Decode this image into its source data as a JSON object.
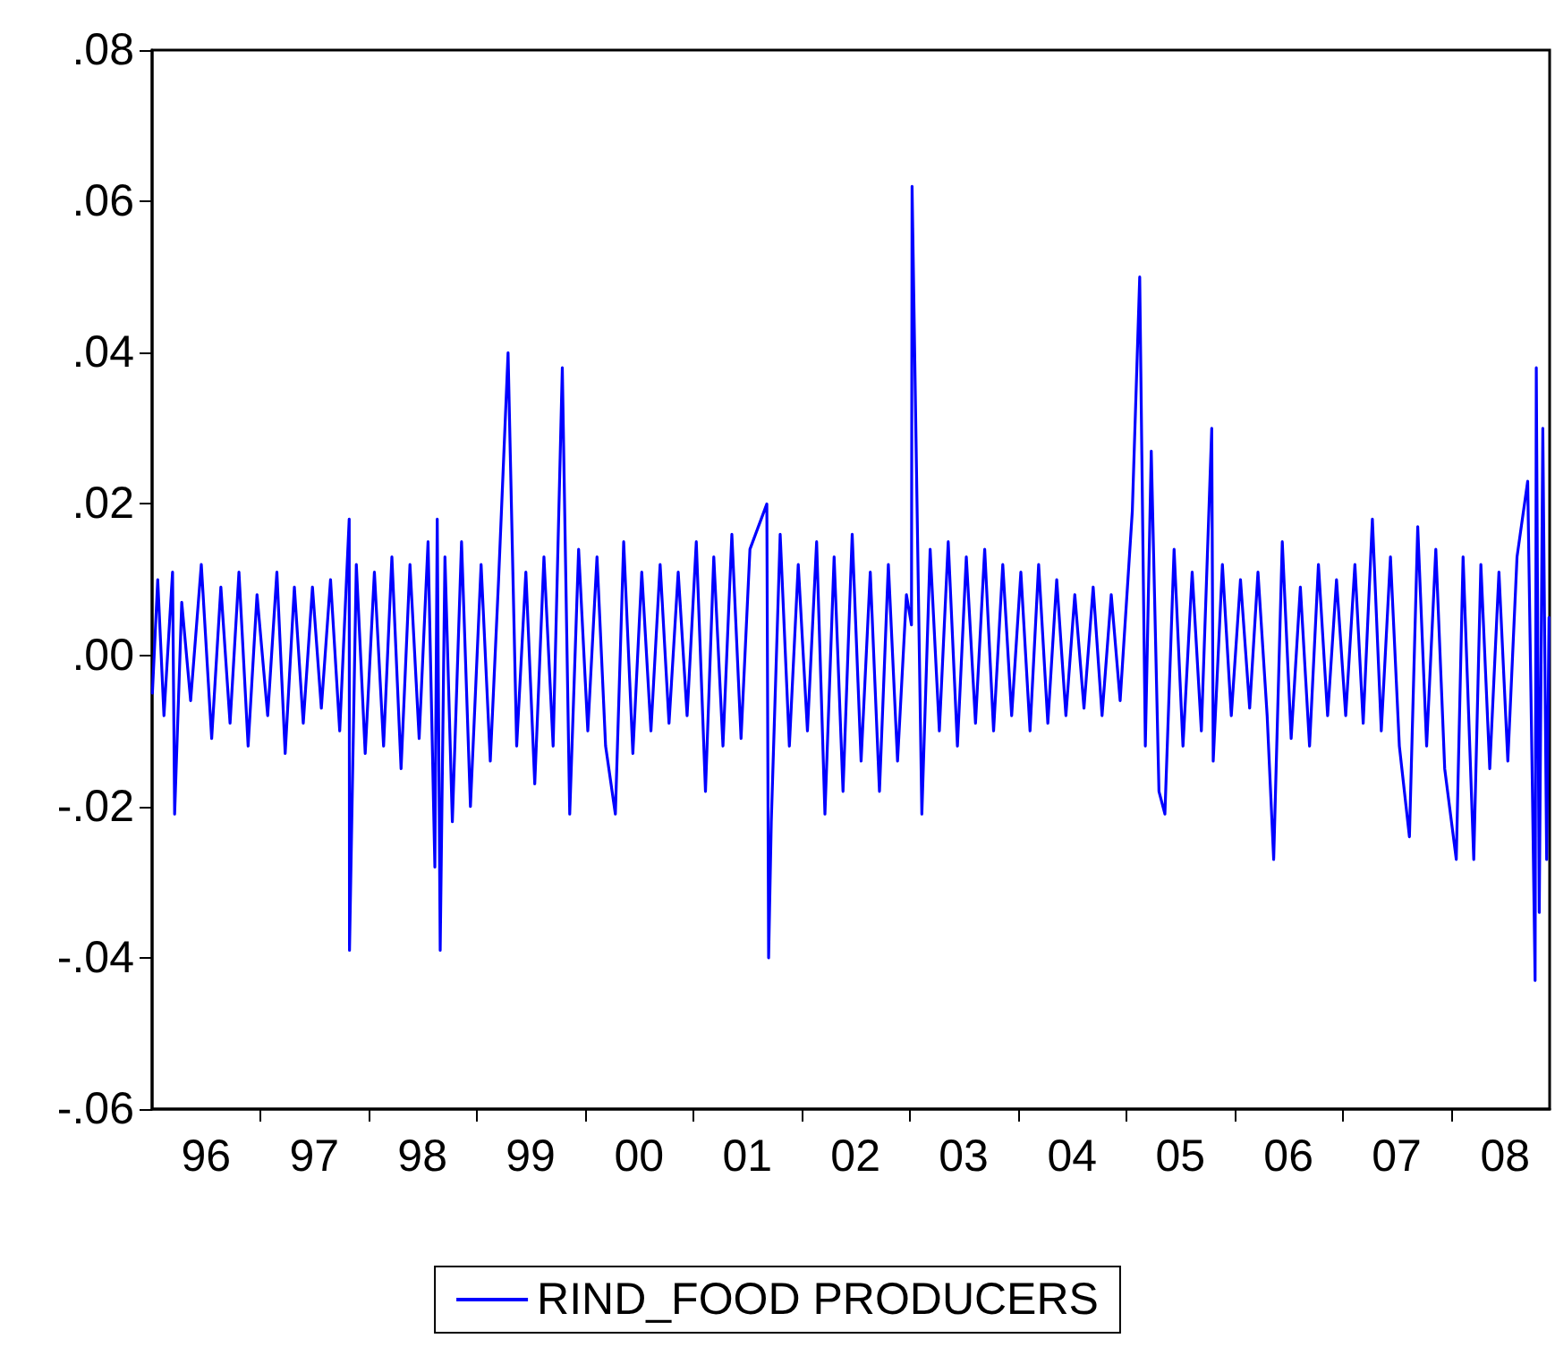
{
  "chart_data": {
    "type": "line",
    "legend": "bottom",
    "grid": false,
    "marker": "none",
    "line_style": "solid",
    "xlim": [
      "1996-01-01",
      "2008-11-28"
    ],
    "ylim": [
      -0.06,
      0.08
    ],
    "yticks": [
      {
        "value": -0.06,
        "label": "-.06"
      },
      {
        "value": -0.04,
        "label": "-.04"
      },
      {
        "value": -0.02,
        "label": "-.02"
      },
      {
        "value": 0,
        "label": ".00"
      },
      {
        "value": 0.02,
        "label": ".02"
      },
      {
        "value": 0.04,
        "label": ".04"
      },
      {
        "value": 0.06,
        "label": ".06"
      },
      {
        "value": 0.08,
        "label": ".08"
      }
    ],
    "xticks": [
      {
        "value": "1996-07-01",
        "label": "96"
      },
      {
        "value": "1997-01-01",
        "label": null
      },
      {
        "value": "1997-07-01",
        "label": "97"
      },
      {
        "value": "1998-01-01",
        "label": null
      },
      {
        "value": "1998-07-01",
        "label": "98"
      },
      {
        "value": "1999-01-01",
        "label": null
      },
      {
        "value": "1999-07-01",
        "label": "99"
      },
      {
        "value": "2000-01-01",
        "label": null
      },
      {
        "value": "2000-07-01",
        "label": "00"
      },
      {
        "value": "2001-01-01",
        "label": null
      },
      {
        "value": "2001-07-01",
        "label": "01"
      },
      {
        "value": "2002-01-01",
        "label": null
      },
      {
        "value": "2002-07-01",
        "label": "02"
      },
      {
        "value": "2003-01-01",
        "label": null
      },
      {
        "value": "2003-07-01",
        "label": "03"
      },
      {
        "value": "2004-01-01",
        "label": null
      },
      {
        "value": "2004-07-01",
        "label": "04"
      },
      {
        "value": "2005-01-01",
        "label": null
      },
      {
        "value": "2005-07-01",
        "label": "05"
      },
      {
        "value": "2006-01-01",
        "label": null
      },
      {
        "value": "2006-07-01",
        "label": "06"
      },
      {
        "value": "2007-01-01",
        "label": null
      },
      {
        "value": "2007-07-01",
        "label": "07"
      },
      {
        "value": "2008-01-01",
        "label": null
      },
      {
        "value": "2008-07-01",
        "label": "08"
      }
    ],
    "series": [
      {
        "name": "RIND_FOOD PRODUCERS",
        "color": "#0000ff",
        "x": [
          "1996-01-02",
          "1996-01-20",
          "1996-02-10",
          "1996-03-10",
          "1996-03-17",
          "1996-04-10",
          "1996-05-10",
          "1996-06-15",
          "1996-07-20",
          "1996-08-20",
          "1996-09-20",
          "1996-10-20",
          "1996-11-20",
          "1996-12-20",
          "1997-01-25",
          "1997-02-25",
          "1997-03-25",
          "1997-04-25",
          "1997-05-25",
          "1997-06-25",
          "1997-07-25",
          "1997-08-25",
          "1997-09-25",
          "1997-10-27",
          "1997-10-28",
          "1997-11-20",
          "1997-12-20",
          "1998-01-20",
          "1998-02-20",
          "1998-03-20",
          "1998-04-20",
          "1998-05-20",
          "1998-06-20",
          "1998-07-20",
          "1998-08-12",
          "1998-08-20",
          "1998-08-30",
          "1998-09-15",
          "1998-10-10",
          "1998-11-10",
          "1998-12-10",
          "1999-01-15",
          "1999-02-15",
          "1999-03-15",
          "1999-04-16",
          "1999-05-15",
          "1999-06-15",
          "1999-07-15",
          "1999-08-15",
          "1999-09-15",
          "1999-10-16",
          "1999-11-10",
          "1999-12-10",
          "2000-01-10",
          "2000-02-10",
          "2000-03-10",
          "2000-04-12",
          "2000-05-10",
          "2000-06-10",
          "2000-07-10",
          "2000-08-10",
          "2000-09-10",
          "2000-10-10",
          "2000-11-10",
          "2000-12-10",
          "2001-01-10",
          "2001-02-10",
          "2001-03-10",
          "2001-04-10",
          "2001-05-10",
          "2001-06-10",
          "2001-07-10",
          "2001-09-05",
          "2001-09-11",
          "2001-09-20",
          "2001-10-20",
          "2001-11-20",
          "2001-12-20",
          "2002-01-20",
          "2002-02-20",
          "2002-03-20",
          "2002-04-20",
          "2002-05-20",
          "2002-06-20",
          "2002-07-20",
          "2002-08-20",
          "2002-09-20",
          "2002-10-20",
          "2002-11-20",
          "2002-12-20",
          "2003-01-06",
          "2003-01-08",
          "2003-02-10",
          "2003-03-10",
          "2003-04-10",
          "2003-05-10",
          "2003-06-10",
          "2003-07-10",
          "2003-08-10",
          "2003-09-10",
          "2003-10-10",
          "2003-11-10",
          "2003-12-10",
          "2004-01-10",
          "2004-02-10",
          "2004-03-10",
          "2004-04-10",
          "2004-05-10",
          "2004-06-10",
          "2004-07-10",
          "2004-08-10",
          "2004-09-10",
          "2004-10-10",
          "2004-11-10",
          "2004-12-10",
          "2005-01-20",
          "2005-02-14",
          "2005-03-05",
          "2005-03-25",
          "2005-04-20",
          "2005-05-10",
          "2005-06-10",
          "2005-07-10",
          "2005-08-10",
          "2005-09-10",
          "2005-10-15",
          "2005-10-20",
          "2005-11-20",
          "2005-12-20",
          "2006-01-20",
          "2006-02-20",
          "2006-03-20",
          "2006-04-20",
          "2006-05-12",
          "2006-06-10",
          "2006-07-10",
          "2006-08-10",
          "2006-09-10",
          "2006-10-10",
          "2006-11-10",
          "2006-12-10",
          "2007-01-10",
          "2007-02-10",
          "2007-03-10",
          "2007-04-10",
          "2007-05-10",
          "2007-06-10",
          "2007-07-10",
          "2007-08-13",
          "2007-09-10",
          "2007-10-10",
          "2007-11-10",
          "2007-12-10",
          "2008-01-18",
          "2008-02-10",
          "2008-03-17",
          "2008-04-10",
          "2008-05-10",
          "2008-06-10",
          "2008-07-10",
          "2008-08-10",
          "2008-09-15",
          "2008-10-01",
          "2008-10-10",
          "2008-10-14",
          "2008-10-24",
          "2008-11-05",
          "2008-11-18",
          "2008-11-26"
        ],
        "values": [
          -0.005,
          0.01,
          -0.008,
          0.011,
          -0.021,
          0.007,
          -0.006,
          0.012,
          -0.011,
          0.009,
          -0.009,
          0.011,
          -0.012,
          0.008,
          -0.008,
          0.011,
          -0.013,
          0.009,
          -0.009,
          0.009,
          -0.007,
          0.01,
          -0.01,
          0.018,
          -0.039,
          0.012,
          -0.013,
          0.011,
          -0.012,
          0.013,
          -0.015,
          0.012,
          -0.011,
          0.015,
          -0.028,
          0.018,
          -0.039,
          0.013,
          -0.022,
          0.015,
          -0.02,
          0.012,
          -0.014,
          0.01,
          0.04,
          -0.012,
          0.011,
          -0.017,
          0.013,
          -0.012,
          0.038,
          -0.021,
          0.014,
          -0.01,
          0.013,
          -0.012,
          -0.021,
          0.015,
          -0.013,
          0.011,
          -0.01,
          0.012,
          -0.009,
          0.011,
          -0.008,
          0.015,
          -0.018,
          0.013,
          -0.012,
          0.016,
          -0.011,
          0.014,
          0.02,
          -0.04,
          -0.022,
          0.016,
          -0.012,
          0.012,
          -0.01,
          0.015,
          -0.021,
          0.013,
          -0.018,
          0.016,
          -0.014,
          0.011,
          -0.018,
          0.012,
          -0.014,
          0.008,
          0.004,
          0.062,
          -0.021,
          0.014,
          -0.01,
          0.015,
          -0.012,
          0.013,
          -0.009,
          0.014,
          -0.01,
          0.012,
          -0.008,
          0.011,
          -0.01,
          0.012,
          -0.009,
          0.01,
          -0.008,
          0.008,
          -0.007,
          0.009,
          -0.008,
          0.008,
          -0.006,
          0.019,
          0.05,
          -0.012,
          0.027,
          -0.018,
          -0.021,
          0.014,
          -0.012,
          0.011,
          -0.01,
          0.03,
          -0.014,
          0.012,
          -0.008,
          0.01,
          -0.007,
          0.011,
          -0.008,
          -0.027,
          0.015,
          -0.011,
          0.009,
          -0.012,
          0.012,
          -0.008,
          0.01,
          -0.008,
          0.012,
          -0.009,
          0.018,
          -0.01,
          0.013,
          -0.012,
          -0.024,
          0.017,
          -0.012,
          0.014,
          -0.015,
          -0.027,
          0.013,
          -0.027,
          0.012,
          -0.015,
          0.011,
          -0.014,
          0.013,
          0.023,
          -0.018,
          -0.043,
          0.038,
          -0.034,
          0.03,
          -0.027,
          0.005
        ]
      }
    ]
  }
}
